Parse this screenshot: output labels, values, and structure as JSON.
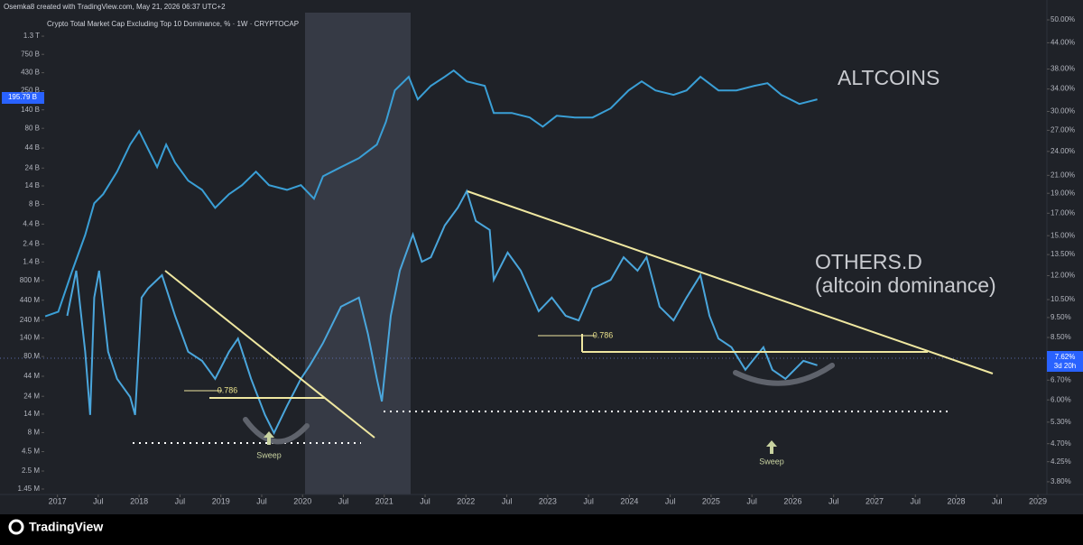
{
  "header": "Osemka8 created with TradingView.com, May 21, 2026 06:37 UTC+2",
  "footer": "TradingView",
  "chart_data": {
    "type": "line",
    "title": "Crypto Total Market Cap Excluding Top 10 Dominance, % · 1W · CRYPTOCAP",
    "log_scale": true,
    "xlim": [
      2016.297,
      2029.11
    ],
    "xticks": [
      2017,
      {
        "value": 2017.5,
        "label": "Jul"
      },
      2018,
      {
        "value": 2018.5,
        "label": "Jul"
      },
      2019,
      {
        "value": 2019.5,
        "label": "Jul"
      },
      2020,
      {
        "value": 2020.5,
        "label": "Jul"
      },
      2021,
      {
        "value": 2021.5,
        "label": "Jul"
      },
      2022,
      {
        "value": 2022.5,
        "label": "Jul"
      },
      2023,
      {
        "value": 2023.5,
        "label": "Jul"
      },
      2024,
      {
        "value": 2024.5,
        "label": "Jul"
      },
      2025,
      {
        "value": 2025.5,
        "label": "Jul"
      },
      2026,
      {
        "value": 2026.5,
        "label": "Jul"
      },
      2027,
      {
        "value": 2027.5,
        "label": "Jul"
      },
      2028,
      {
        "value": 2028.5,
        "label": "Jul"
      },
      2029
    ],
    "ylim": [
      1230000,
      2650000000000
    ],
    "yticks": [
      {
        "value": 1300000000000,
        "label": "1.3 T"
      },
      {
        "value": 750000000000,
        "label": "750 B"
      },
      {
        "value": 430000000000,
        "label": "430 B"
      },
      {
        "value": 250000000000,
        "label": "250 B"
      },
      {
        "value": 140000000000,
        "label": "140 B"
      },
      {
        "value": 80000000000,
        "label": "80 B"
      },
      {
        "value": 44000000000,
        "label": "44 B"
      },
      {
        "value": 24000000000,
        "label": "24 B"
      },
      {
        "value": 14000000000,
        "label": "14 B"
      },
      {
        "value": 8000000000,
        "label": "8 B"
      },
      {
        "value": 4400000000,
        "label": "4.4 B"
      },
      {
        "value": 2400000000,
        "label": "2.4 B"
      },
      {
        "value": 1400000000,
        "label": "1.4 B"
      },
      {
        "value": 800000000,
        "label": "800 M"
      },
      {
        "value": 440000000,
        "label": "440 M"
      },
      {
        "value": 240000000,
        "label": "240 M"
      },
      {
        "value": 140000000,
        "label": "140 M"
      },
      {
        "value": 80000000,
        "label": "80 M"
      },
      {
        "value": 44000000,
        "label": "44 M"
      },
      {
        "value": 24000000,
        "label": "24 M"
      },
      {
        "value": 14000000,
        "label": "14 M"
      },
      {
        "value": 8000000,
        "label": "8 M"
      },
      {
        "value": 4500000,
        "label": "4.5 M"
      },
      {
        "value": 2500000,
        "label": "2.5 M"
      },
      {
        "value": 1450000,
        "label": "1.45 M"
      }
    ],
    "y2lim": [
      3.54,
      52.06
    ],
    "y2ticks": [
      {
        "value": 50,
        "label": "50.00%"
      },
      {
        "value": 44,
        "label": "44.00%"
      },
      {
        "value": 38,
        "label": "38.00%"
      },
      {
        "value": 34,
        "label": "34.00%"
      },
      {
        "value": 30,
        "label": "30.00%"
      },
      {
        "value": 27,
        "label": "27.00%"
      },
      {
        "value": 24,
        "label": "24.00%"
      },
      {
        "value": 21,
        "label": "21.00%"
      },
      {
        "value": 19,
        "label": "19.00%"
      },
      {
        "value": 17,
        "label": "17.00%"
      },
      {
        "value": 15,
        "label": "15.00%"
      },
      {
        "value": 13.5,
        "label": "13.50%"
      },
      {
        "value": 12,
        "label": "12.00%"
      },
      {
        "value": 10.5,
        "label": "10.50%"
      },
      {
        "value": 9.5,
        "label": "9.50%"
      },
      {
        "value": 8.5,
        "label": "8.50%"
      },
      {
        "value": 6.7,
        "label": "6.70%"
      },
      {
        "value": 6,
        "label": "6.00%"
      },
      {
        "value": 5.3,
        "label": "5.30%"
      },
      {
        "value": 4.7,
        "label": "4.70%"
      },
      {
        "value": 4.25,
        "label": "4.25%"
      },
      {
        "value": 3.8,
        "label": "3.80%"
      }
    ],
    "series": [
      {
        "name": "ALTCOINS",
        "color": "#3a9fd6",
        "axis": "y",
        "x": [
          2016.85,
          2017.01,
          2017.18,
          2017.34,
          2017.45,
          2017.56,
          2017.73,
          2017.89,
          2018.0,
          2018.11,
          2018.22,
          2018.33,
          2018.44,
          2018.6,
          2018.77,
          2018.93,
          2019.1,
          2019.26,
          2019.43,
          2019.59,
          2019.81,
          2019.98,
          2020.14,
          2020.25,
          2020.47,
          2020.69,
          2020.91,
          2021.02,
          2021.13,
          2021.3,
          2021.41,
          2021.57,
          2021.74,
          2021.85,
          2022.01,
          2022.23,
          2022.34,
          2022.56,
          2022.78,
          2022.94,
          2023.11,
          2023.33,
          2023.55,
          2023.77,
          2023.99,
          2024.15,
          2024.32,
          2024.54,
          2024.7,
          2024.87,
          2025.09,
          2025.31,
          2025.53,
          2025.69,
          2025.86,
          2026.08,
          2026.3
        ],
        "values": [
          270000000,
          310000000,
          1060000000,
          3170000000,
          8260000000,
          10900000000,
          21500000000,
          48900000000,
          73600000000,
          42600000000,
          24700000000,
          48900000000,
          28300000000,
          16400000000,
          12400000000,
          7200000000,
          10900000000,
          14300000000,
          21500000000,
          14300000000,
          12400000000,
          14300000000,
          9500000000,
          18700000000,
          24700000000,
          32400000000,
          48900000000,
          97000000000,
          252000000000,
          380000000000,
          192000000000,
          289000000000,
          380000000000,
          460000000000,
          331000000000,
          289000000000,
          127000000000,
          127000000000,
          111000000000,
          84000000000,
          117000000000,
          111000000000,
          111000000000,
          146000000000,
          252000000000,
          331000000000,
          252000000000,
          220000000000,
          252000000000,
          380000000000,
          252000000000,
          252000000000,
          289000000000,
          313000000000,
          220000000000,
          167000000000,
          192000000000
        ]
      },
      {
        "name": "OTHERS.D",
        "color": "#4aa6dc",
        "axis": "y2",
        "x": [
          2017.12,
          2017.23,
          2017.34,
          2017.4,
          2017.45,
          2017.51,
          2017.62,
          2017.73,
          2017.89,
          2017.95,
          2018.03,
          2018.11,
          2018.28,
          2018.44,
          2018.6,
          2018.77,
          2018.93,
          2019.1,
          2019.21,
          2019.37,
          2019.54,
          2019.65,
          2019.81,
          2019.98,
          2020.09,
          2020.25,
          2020.47,
          2020.69,
          2020.8,
          2020.91,
          2020.97,
          2021.08,
          2021.19,
          2021.35,
          2021.46,
          2021.57,
          2021.74,
          2021.9,
          2022.01,
          2022.12,
          2022.29,
          2022.34,
          2022.51,
          2022.67,
          2022.89,
          2023.05,
          2023.22,
          2023.38,
          2023.55,
          2023.77,
          2023.93,
          2024.1,
          2024.21,
          2024.37,
          2024.54,
          2024.7,
          2024.87,
          2024.98,
          2025.09,
          2025.25,
          2025.42,
          2025.64,
          2025.75,
          2025.91,
          2026.13,
          2026.3
        ],
        "values": [
          9.59,
          12.34,
          7.85,
          5.52,
          10.62,
          12.34,
          7.85,
          6.75,
          6.1,
          5.52,
          10.62,
          11.17,
          12.03,
          9.59,
          7.85,
          7.46,
          6.75,
          7.85,
          8.45,
          6.75,
          5.52,
          4.99,
          5.8,
          6.75,
          7.28,
          8.24,
          10.09,
          10.62,
          8.67,
          6.75,
          5.95,
          9.59,
          12.34,
          15.1,
          12.97,
          13.3,
          15.88,
          17.54,
          19.23,
          16.29,
          15.49,
          11.72,
          13.65,
          12.34,
          9.84,
          10.62,
          9.59,
          9.35,
          11.17,
          11.72,
          13.3,
          12.34,
          13.3,
          10.09,
          9.35,
          10.62,
          12.03,
          9.59,
          8.45,
          8.05,
          7.1,
          8.05,
          7.1,
          6.75,
          7.46,
          7.28
        ]
      }
    ],
    "annotations": [
      "(altcoin dominance)",
      "0.786",
      "0.786",
      "Sweep",
      "Sweep"
    ],
    "price_labels": [
      "195.79 B",
      "7.62%",
      "3d 20h"
    ]
  }
}
